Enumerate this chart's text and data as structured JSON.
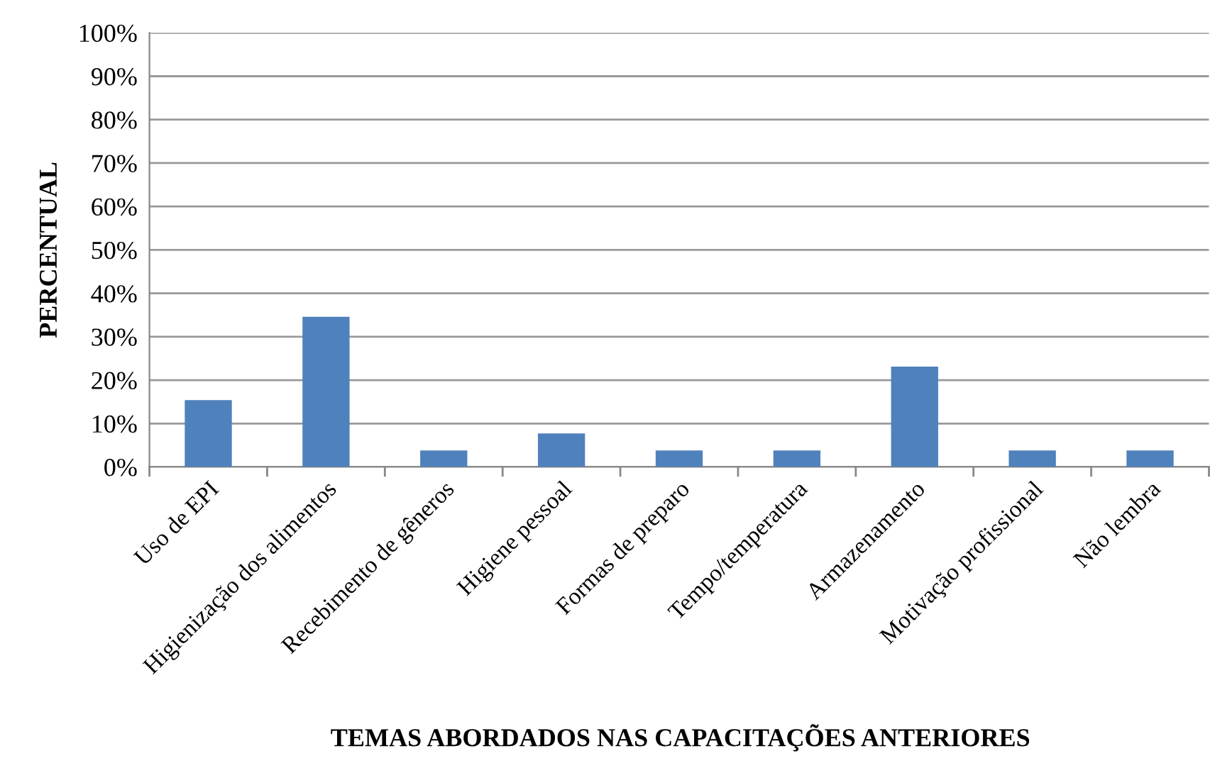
{
  "chart_data": {
    "type": "bar",
    "xlabel": "TEMAS ABORDADOS NAS CAPACITAÇÕES ANTERIORES",
    "ylabel": "PERCENTUAL",
    "categories": [
      "Uso de EPI",
      "Higienização dos alimentos",
      "Recebimento de gêneros",
      "Higiene pessoal",
      "Formas de preparo",
      "Tempo/temperatura",
      "Armazenamento",
      "Motivação profissional",
      "Não lembra"
    ],
    "values": [
      15.4,
      34.6,
      3.8,
      7.7,
      3.8,
      3.8,
      23.1,
      3.8,
      3.8
    ],
    "color": "#4f81bd",
    "ylim": [
      0,
      100
    ],
    "yticks": [
      {
        "value": 0,
        "label": "0%"
      },
      {
        "value": 10,
        "label": "10%"
      },
      {
        "value": 20,
        "label": "20%"
      },
      {
        "value": 30,
        "label": "30%"
      },
      {
        "value": 40,
        "label": "40%"
      },
      {
        "value": 50,
        "label": "50%"
      },
      {
        "value": 60,
        "label": "60%"
      },
      {
        "value": 70,
        "label": "70%"
      },
      {
        "value": 80,
        "label": "80%"
      },
      {
        "value": 90,
        "label": "90%"
      },
      {
        "value": 100,
        "label": "100%"
      }
    ],
    "grid": "y",
    "legend": false
  }
}
